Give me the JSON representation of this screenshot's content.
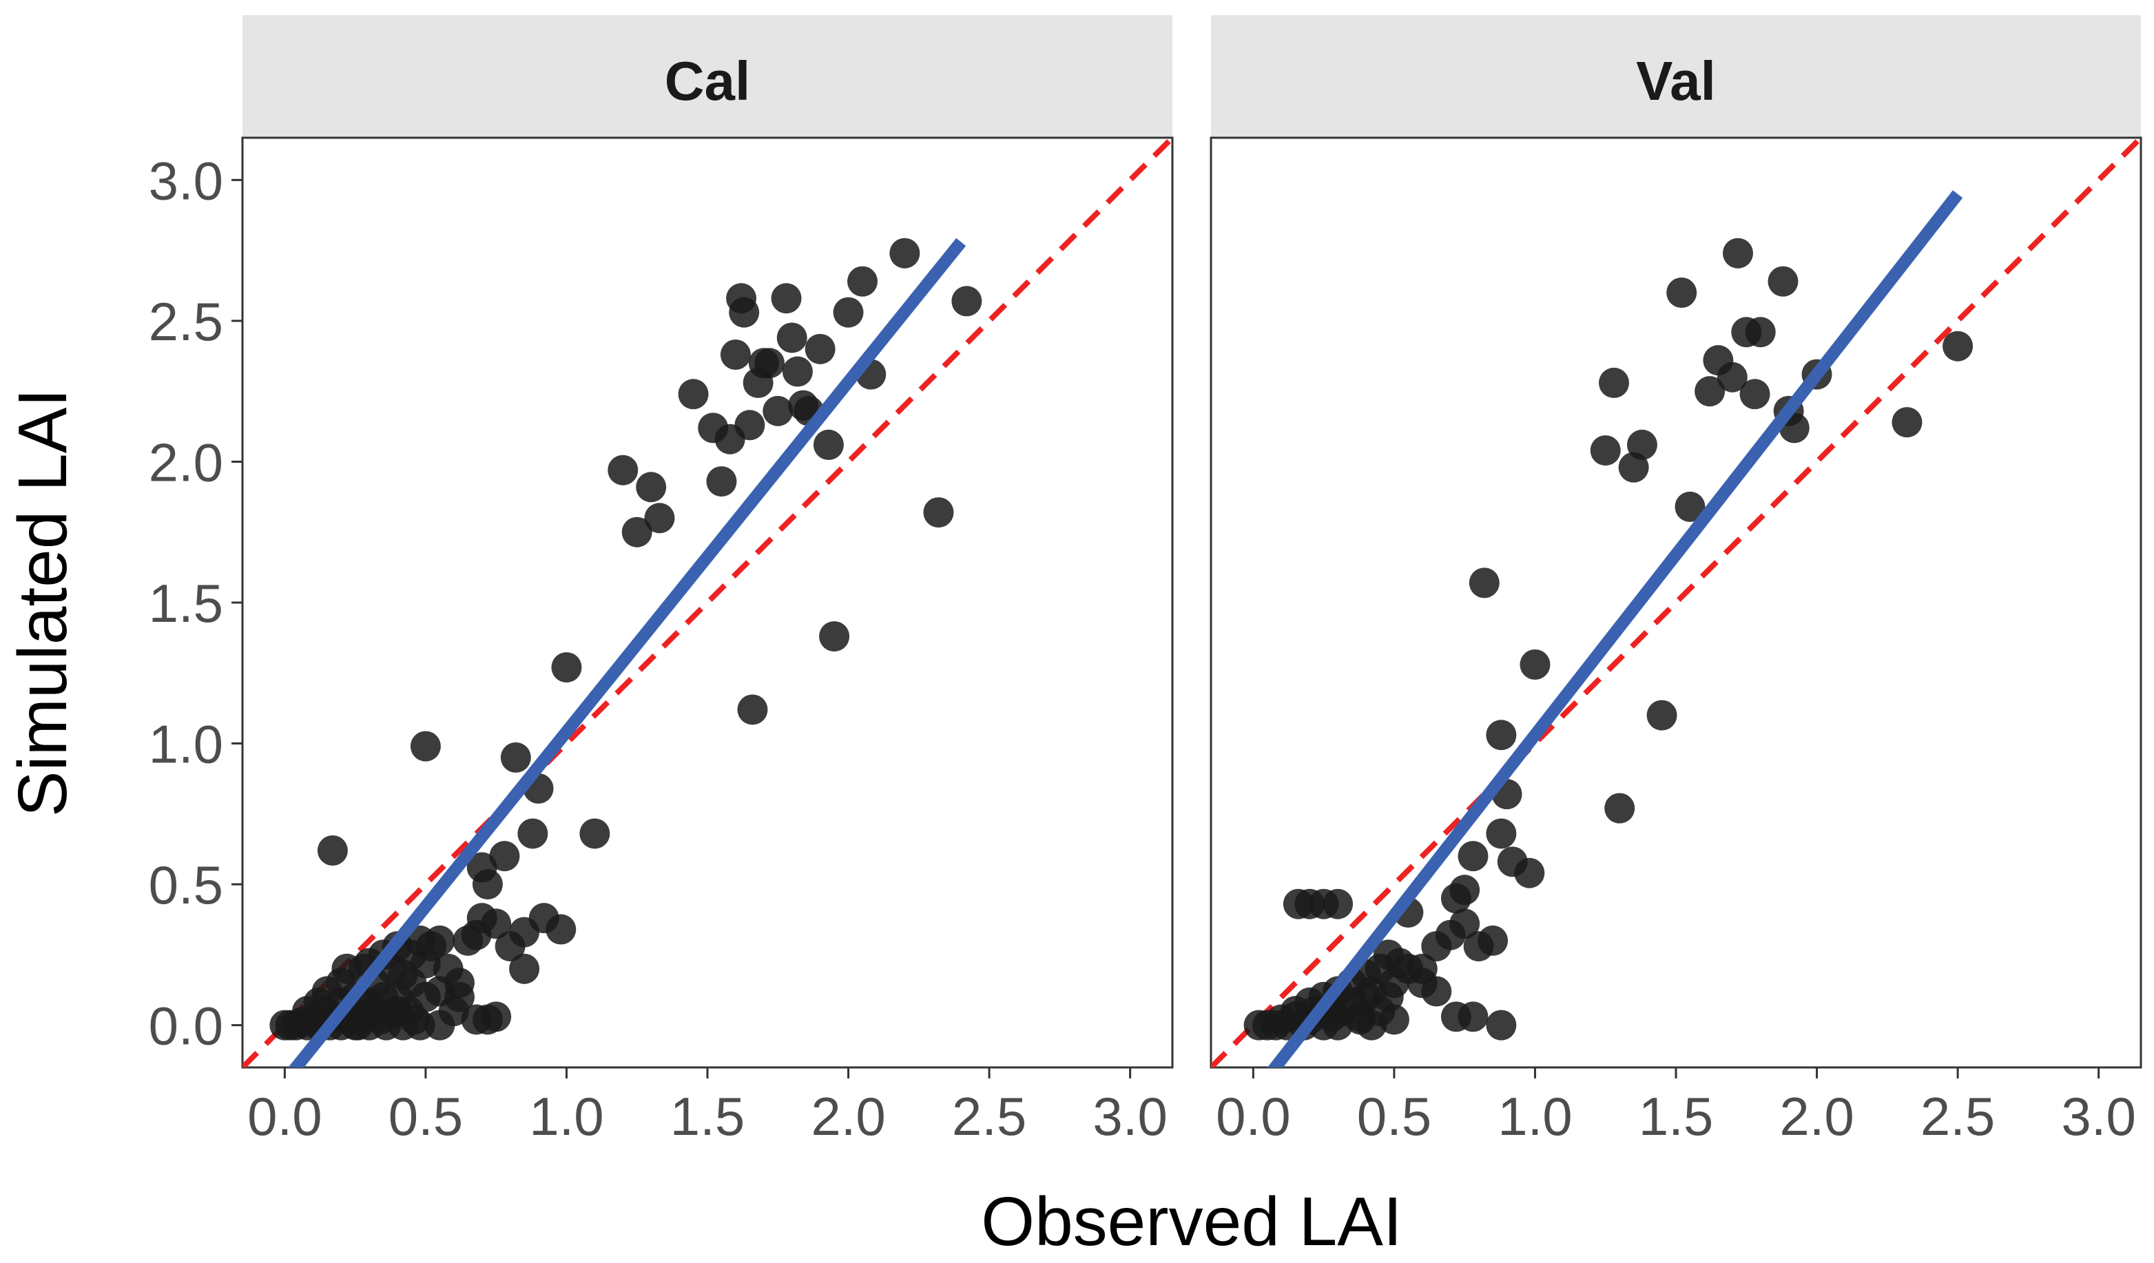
{
  "chart_data": {
    "type": "scatter",
    "xlabel": "Observed LAI",
    "ylabel": "Simulated LAI",
    "xlim": [
      -0.15,
      3.15
    ],
    "ylim": [
      -0.15,
      3.15
    ],
    "x_ticks": [
      "0.0",
      "0.5",
      "1.0",
      "1.5",
      "2.0",
      "2.5",
      "3.0"
    ],
    "y_ticks": [
      "0.0",
      "0.5",
      "1.0",
      "1.5",
      "2.0",
      "2.5",
      "3.0"
    ],
    "tick_values": [
      0,
      0.5,
      1,
      1.5,
      2,
      2.5,
      3
    ],
    "colors": {
      "points": "#1a1a1a",
      "regression": "#3a62b0",
      "one_to_one": "#ee2222",
      "strip": "#e5e5e5"
    },
    "panels": [
      {
        "name": "Cal",
        "regression": {
          "x0": 0.0,
          "y0": -0.2,
          "x1": 2.4,
          "y1": 2.78
        },
        "points": [
          [
            0.0,
            0.0
          ],
          [
            0.02,
            0.0
          ],
          [
            0.04,
            0.0
          ],
          [
            0.06,
            0.01
          ],
          [
            0.08,
            0.0
          ],
          [
            0.1,
            0.02
          ],
          [
            0.12,
            0.0
          ],
          [
            0.14,
            0.05
          ],
          [
            0.16,
            0.0
          ],
          [
            0.18,
            0.03
          ],
          [
            0.2,
            0.0
          ],
          [
            0.22,
            0.02
          ],
          [
            0.24,
            0.05
          ],
          [
            0.26,
            0.0
          ],
          [
            0.28,
            0.03
          ],
          [
            0.3,
            0.0
          ],
          [
            0.32,
            0.05
          ],
          [
            0.34,
            0.02
          ],
          [
            0.36,
            0.0
          ],
          [
            0.38,
            0.04
          ],
          [
            0.4,
            0.1
          ],
          [
            0.42,
            0.0
          ],
          [
            0.44,
            0.05
          ],
          [
            0.46,
            0.02
          ],
          [
            0.48,
            0.0
          ],
          [
            0.08,
            0.05
          ],
          [
            0.12,
            0.08
          ],
          [
            0.15,
            0.12
          ],
          [
            0.2,
            0.15
          ],
          [
            0.22,
            0.2
          ],
          [
            0.25,
            0.1
          ],
          [
            0.28,
            0.2
          ],
          [
            0.3,
            0.22
          ],
          [
            0.32,
            0.15
          ],
          [
            0.35,
            0.25
          ],
          [
            0.38,
            0.2
          ],
          [
            0.4,
            0.28
          ],
          [
            0.42,
            0.18
          ],
          [
            0.45,
            0.25
          ],
          [
            0.48,
            0.3
          ],
          [
            0.5,
            0.22
          ],
          [
            0.52,
            0.28
          ],
          [
            0.55,
            0.3
          ],
          [
            0.5,
            0.1
          ],
          [
            0.55,
            0.12
          ],
          [
            0.6,
            0.05
          ],
          [
            0.62,
            0.15
          ],
          [
            0.65,
            0.3
          ],
          [
            0.68,
            0.32
          ],
          [
            0.7,
            0.38
          ],
          [
            0.72,
            0.5
          ],
          [
            0.7,
            0.56
          ],
          [
            0.75,
            0.36
          ],
          [
            0.78,
            0.6
          ],
          [
            0.8,
            0.28
          ],
          [
            0.82,
            0.95
          ],
          [
            0.85,
            0.33
          ],
          [
            0.88,
            0.68
          ],
          [
            0.9,
            0.84
          ],
          [
            0.92,
            0.38
          ],
          [
            0.98,
            0.34
          ],
          [
            1.0,
            1.27
          ],
          [
            1.1,
            0.68
          ],
          [
            0.5,
            0.99
          ],
          [
            0.17,
            0.62
          ],
          [
            0.55,
            0.0
          ],
          [
            0.68,
            0.02
          ],
          [
            0.72,
            0.02
          ],
          [
            0.75,
            0.03
          ],
          [
            0.85,
            0.2
          ],
          [
            0.3,
            0.08
          ],
          [
            0.2,
            0.08
          ],
          [
            0.4,
            0.05
          ],
          [
            0.45,
            0.15
          ],
          [
            0.58,
            0.2
          ],
          [
            0.62,
            0.1
          ],
          [
            0.25,
            0.0
          ],
          [
            0.35,
            0.1
          ],
          [
            1.2,
            1.97
          ],
          [
            1.25,
            1.75
          ],
          [
            1.3,
            1.91
          ],
          [
            1.33,
            1.8
          ],
          [
            1.45,
            2.24
          ],
          [
            1.52,
            2.12
          ],
          [
            1.55,
            1.93
          ],
          [
            1.58,
            2.08
          ],
          [
            1.6,
            2.38
          ],
          [
            1.62,
            2.58
          ],
          [
            1.63,
            2.53
          ],
          [
            1.65,
            2.13
          ],
          [
            1.66,
            1.12
          ],
          [
            1.68,
            2.28
          ],
          [
            1.7,
            2.35
          ],
          [
            1.72,
            2.35
          ],
          [
            1.75,
            2.18
          ],
          [
            1.78,
            2.58
          ],
          [
            1.8,
            2.44
          ],
          [
            1.82,
            2.32
          ],
          [
            1.84,
            2.2
          ],
          [
            1.86,
            2.18
          ],
          [
            1.9,
            2.4
          ],
          [
            1.93,
            2.06
          ],
          [
            1.95,
            1.38
          ],
          [
            2.0,
            2.53
          ],
          [
            2.05,
            2.64
          ],
          [
            2.08,
            2.31
          ],
          [
            2.2,
            2.74
          ],
          [
            2.32,
            1.82
          ],
          [
            2.42,
            2.57
          ]
        ]
      },
      {
        "name": "Val",
        "regression": {
          "x0": 0.0,
          "y0": -0.25,
          "x1": 2.5,
          "y1": 2.95
        },
        "points": [
          [
            0.02,
            0.0
          ],
          [
            0.05,
            0.0
          ],
          [
            0.08,
            0.0
          ],
          [
            0.1,
            0.02
          ],
          [
            0.12,
            0.0
          ],
          [
            0.15,
            0.03
          ],
          [
            0.18,
            0.0
          ],
          [
            0.2,
            0.02
          ],
          [
            0.22,
            0.05
          ],
          [
            0.25,
            0.0
          ],
          [
            0.28,
            0.03
          ],
          [
            0.3,
            0.0
          ],
          [
            0.32,
            0.05
          ],
          [
            0.35,
            0.08
          ],
          [
            0.38,
            0.02
          ],
          [
            0.4,
            0.1
          ],
          [
            0.42,
            0.0
          ],
          [
            0.45,
            0.05
          ],
          [
            0.48,
            0.1
          ],
          [
            0.5,
            0.02
          ],
          [
            0.15,
            0.05
          ],
          [
            0.2,
            0.08
          ],
          [
            0.25,
            0.1
          ],
          [
            0.3,
            0.12
          ],
          [
            0.35,
            0.15
          ],
          [
            0.4,
            0.18
          ],
          [
            0.45,
            0.2
          ],
          [
            0.48,
            0.25
          ],
          [
            0.5,
            0.15
          ],
          [
            0.52,
            0.22
          ],
          [
            0.55,
            0.2
          ],
          [
            0.6,
            0.15
          ],
          [
            0.65,
            0.28
          ],
          [
            0.7,
            0.32
          ],
          [
            0.72,
            0.45
          ],
          [
            0.75,
            0.36
          ],
          [
            0.78,
            0.6
          ],
          [
            0.8,
            0.28
          ],
          [
            0.85,
            0.3
          ],
          [
            0.88,
            0.68
          ],
          [
            0.9,
            0.82
          ],
          [
            0.92,
            0.58
          ],
          [
            0.98,
            0.54
          ],
          [
            0.16,
            0.43
          ],
          [
            0.2,
            0.43
          ],
          [
            0.25,
            0.43
          ],
          [
            0.3,
            0.43
          ],
          [
            0.55,
            0.4
          ],
          [
            0.72,
            0.03
          ],
          [
            0.78,
            0.03
          ],
          [
            0.88,
            0.0
          ],
          [
            0.65,
            0.12
          ],
          [
            0.38,
            0.03
          ],
          [
            0.28,
            0.05
          ],
          [
            0.42,
            0.12
          ],
          [
            0.6,
            0.2
          ],
          [
            0.75,
            0.48
          ],
          [
            0.82,
            1.57
          ],
          [
            0.88,
            1.03
          ],
          [
            1.0,
            1.28
          ],
          [
            1.25,
            2.04
          ],
          [
            1.28,
            2.28
          ],
          [
            1.3,
            0.77
          ],
          [
            1.35,
            1.98
          ],
          [
            1.38,
            2.06
          ],
          [
            1.45,
            1.1
          ],
          [
            1.52,
            2.6
          ],
          [
            1.55,
            1.84
          ],
          [
            1.62,
            2.25
          ],
          [
            1.65,
            2.36
          ],
          [
            1.7,
            2.3
          ],
          [
            1.72,
            2.74
          ],
          [
            1.75,
            2.46
          ],
          [
            1.78,
            2.24
          ],
          [
            1.8,
            2.46
          ],
          [
            1.88,
            2.64
          ],
          [
            1.9,
            2.18
          ],
          [
            1.92,
            2.12
          ],
          [
            2.0,
            2.31
          ],
          [
            2.32,
            2.14
          ],
          [
            2.5,
            2.41
          ]
        ]
      }
    ]
  }
}
